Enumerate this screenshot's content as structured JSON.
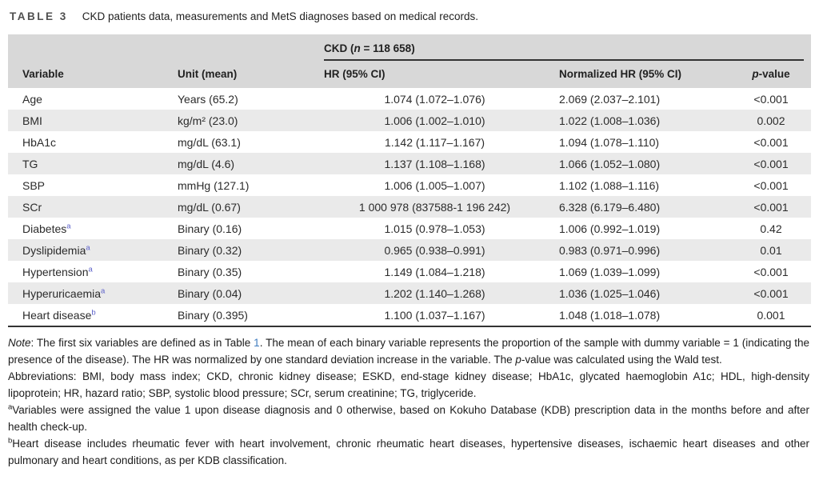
{
  "colors": {
    "header_band": "#d8d8d8",
    "row_stripe": "#eaeaea",
    "rule": "#333333",
    "footnote_marker_blue": "#5c61c9",
    "reference_link_blue": "#3f7bbf"
  },
  "table": {
    "label": "TABLE 3",
    "caption": "CKD patients data, measurements and MetS diagnoses based on medical records.",
    "group_header_segments": [
      {
        "t": "CKD ("
      },
      {
        "s": "i",
        "t": "n"
      },
      {
        "t": " = 118 658)"
      }
    ],
    "columns": {
      "variable": "Variable",
      "unit": "Unit (mean)",
      "hr": "HR (95% CI)",
      "normalized_hr": "Normalized HR (95% CI)",
      "p_segments": [
        {
          "s": "i",
          "t": "p"
        },
        {
          "t": "-value"
        }
      ]
    },
    "rows": [
      {
        "variable": "Age",
        "sup": "",
        "unit": "Years (65.2)",
        "hr": "1.074 (1.072–1.076)",
        "normalized_hr": "2.069 (2.037–2.101)",
        "p": "<0.001"
      },
      {
        "variable": "BMI",
        "sup": "",
        "unit": "kg/m² (23.0)",
        "hr": "1.006 (1.002–1.010)",
        "normalized_hr": "1.022 (1.008–1.036)",
        "p": "0.002"
      },
      {
        "variable": "HbA1c",
        "sup": "",
        "unit": "mg/dL (63.1)",
        "hr": "1.142 (1.117–1.167)",
        "normalized_hr": "1.094 (1.078–1.110)",
        "p": "<0.001"
      },
      {
        "variable": "TG",
        "sup": "",
        "unit": "mg/dL (4.6)",
        "hr": "1.137 (1.108–1.168)",
        "normalized_hr": "1.066 (1.052–1.080)",
        "p": "<0.001"
      },
      {
        "variable": "SBP",
        "sup": "",
        "unit": "mmHg (127.1)",
        "hr": "1.006 (1.005–1.007)",
        "normalized_hr": "1.102 (1.088–1.116)",
        "p": "<0.001"
      },
      {
        "variable": "SCr",
        "sup": "",
        "unit": "mg/dL (0.67)",
        "hr": "1 000 978 (837588-1 196 242)",
        "normalized_hr": "6.328 (6.179–6.480)",
        "p": "<0.001"
      },
      {
        "variable": "Diabetes",
        "sup": "a",
        "unit": "Binary (0.16)",
        "hr": "1.015 (0.978–1.053)",
        "normalized_hr": "1.006 (0.992–1.019)",
        "p": "0.42"
      },
      {
        "variable": "Dyslipidemia",
        "sup": "a",
        "unit": "Binary (0.32)",
        "hr": "0.965 (0.938–0.991)",
        "normalized_hr": "0.983 (0.971–0.996)",
        "p": "0.01"
      },
      {
        "variable": "Hypertension",
        "sup": "a",
        "unit": "Binary (0.35)",
        "hr": "1.149 (1.084–1.218)",
        "normalized_hr": "1.069 (1.039–1.099)",
        "p": "<0.001"
      },
      {
        "variable": "Hyperuricaemia",
        "sup": "a",
        "unit": "Binary (0.04)",
        "hr": "1.202 (1.140–1.268)",
        "normalized_hr": "1.036 (1.025–1.046)",
        "p": "<0.001"
      },
      {
        "variable": "Heart disease",
        "sup": "b",
        "unit": "Binary (0.395)",
        "hr": "1.100 (1.037–1.167)",
        "normalized_hr": "1.048 (1.018–1.078)",
        "p": "0.001"
      }
    ]
  },
  "notes": {
    "paragraphs": [
      [
        {
          "s": "i",
          "t": "Note"
        },
        {
          "t": ": The first six variables are defined as in Table "
        },
        {
          "s": "link",
          "t": "1"
        },
        {
          "t": ". The mean of each binary variable represents the proportion of the sample with dummy variable = 1 (indicating the presence of the disease). The HR was normalized by one standard deviation increase in the variable. The "
        },
        {
          "s": "i",
          "t": "p"
        },
        {
          "t": "-value was calculated using the Wald test."
        }
      ],
      [
        {
          "t": "Abbreviations: BMI, body mass index; CKD, chronic kidney disease; ESKD, end-stage kidney disease; HbA1c, glycated haemoglobin A1c; HDL, high-density lipoprotein; HR, hazard ratio; SBP, systolic blood pressure; SCr, serum creatinine; TG, triglyceride."
        }
      ],
      [
        {
          "s": "sup",
          "t": "a"
        },
        {
          "t": "Variables were assigned the value 1 upon disease diagnosis and 0 otherwise, based on Kokuho Database (KDB) prescription data in the months before and after health check-up."
        }
      ],
      [
        {
          "s": "sup",
          "t": "b"
        },
        {
          "t": "Heart disease includes rheumatic fever with heart involvement, chronic rheumatic heart diseases, hypertensive diseases, ischaemic heart diseases and other pulmonary and heart conditions, as per KDB classification."
        }
      ]
    ]
  }
}
